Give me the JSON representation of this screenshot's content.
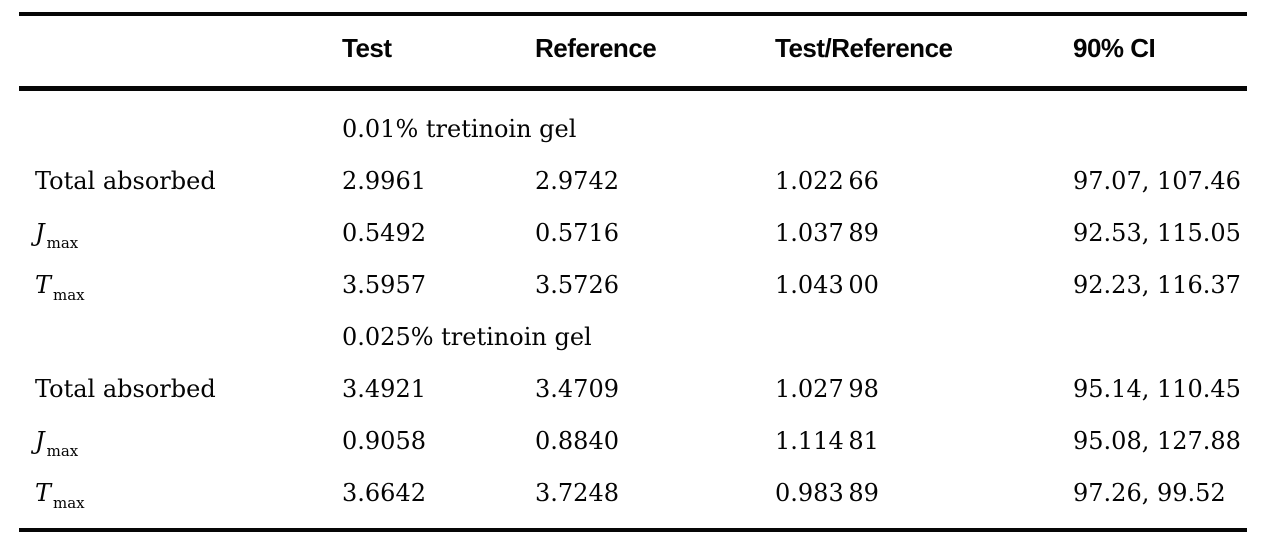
{
  "table": {
    "header": {
      "label": "",
      "test": "Test",
      "reference": "Reference",
      "ratio": "Test/Reference",
      "ci": "90% CI"
    },
    "rows": [
      {
        "type": "section",
        "label": "0.01% tretinoin gel"
      },
      {
        "label": "Total absorbed",
        "sub": "",
        "test": "2.9961",
        "reference": "2.9742",
        "ratio": "1.022 66",
        "ci": "97.07, 107.46"
      },
      {
        "label": "J",
        "sub": "max",
        "test": "0.5492",
        "reference": "0.5716",
        "ratio": "1.037 89",
        "ci": "92.53, 115.05"
      },
      {
        "label": "T",
        "sub": "max",
        "test": "3.5957",
        "reference": "3.5726",
        "ratio": "1.043 00",
        "ci": "92.23, 116.37"
      },
      {
        "type": "section",
        "label": "0.025% tretinoin gel"
      },
      {
        "label": "Total absorbed",
        "sub": "",
        "test": "3.4921",
        "reference": "3.4709",
        "ratio": "1.027 98",
        "ci": "95.14, 110.45"
      },
      {
        "label": "J",
        "sub": "max",
        "test": "0.9058",
        "reference": "0.8840",
        "ratio": "1.114 81",
        "ci": "95.08, 127.88"
      },
      {
        "label": "T",
        "sub": "max",
        "test": "3.6642",
        "reference": "3.7248",
        "ratio": "0.983 89",
        "ci": "97.26, 99.52"
      }
    ]
  }
}
